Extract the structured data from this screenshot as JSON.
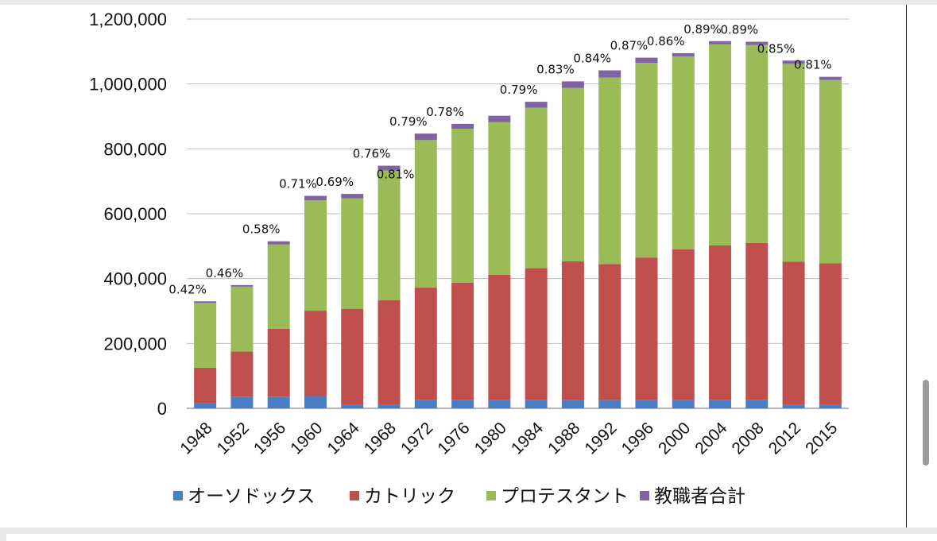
{
  "chart_data": {
    "type": "bar",
    "stacked": true,
    "categories": [
      "1948",
      "1952",
      "1956",
      "1960",
      "1964",
      "1968",
      "1972",
      "1976",
      "1980",
      "1984",
      "1988",
      "1992",
      "1996",
      "2000",
      "2004",
      "2008",
      "2012",
      "2015"
    ],
    "series": [
      {
        "name": "オーソドックス",
        "color": "#4a7ec4",
        "values": [
          15000,
          35000,
          35000,
          38000,
          10000,
          10000,
          25000,
          25000,
          25000,
          25000,
          25000,
          25000,
          25000,
          25000,
          25000,
          25000,
          12000,
          12000
        ]
      },
      {
        "name": "カトリック",
        "color": "#c0504d",
        "values": [
          110000,
          140000,
          210000,
          263000,
          297000,
          323000,
          347000,
          362000,
          387000,
          407000,
          428000,
          420000,
          440000,
          465000,
          477000,
          485000,
          440000,
          435000
        ]
      },
      {
        "name": "プロテスタント",
        "color": "#9bbb59",
        "values": [
          200000,
          200000,
          260000,
          340000,
          340000,
          400000,
          455000,
          475000,
          470000,
          495000,
          535000,
          575000,
          600000,
          595000,
          620000,
          610000,
          610000,
          565000
        ]
      },
      {
        "name": "教職者合計",
        "color": "#8064a2",
        "values": [
          5000,
          5000,
          10000,
          14000,
          14000,
          15000,
          20000,
          15000,
          20000,
          18000,
          20000,
          22000,
          16000,
          10000,
          10000,
          10000,
          10000,
          10000
        ]
      }
    ],
    "labels": [
      "0.42%",
      "0.46%",
      "0.58%",
      "0.71%",
      "0.69%",
      "0.76%\n0.81%",
      "0.79%",
      "0.78%",
      "0.79%",
      "0.83%",
      "0.84%",
      "0.87%",
      "0.86%",
      "0.89%",
      "0.89%",
      "0.85%",
      "0.81%"
    ],
    "point_labels": [
      {
        "text": "0.42%",
        "cat": "1948"
      },
      {
        "text": "0.46%",
        "cat": "1952"
      },
      {
        "text": "0.58%",
        "cat": "1956"
      },
      {
        "text": "0.71%",
        "cat": "1960"
      },
      {
        "text": "0.69%",
        "cat": "1964"
      },
      {
        "text": "0.76%",
        "cat": "1968"
      },
      {
        "text": "0.81%",
        "cat": "1968"
      },
      {
        "text": "0.79%",
        "cat": "1972"
      },
      {
        "text": "0.78%",
        "cat": "1976"
      },
      {
        "text": "0.79%",
        "cat": "1984"
      },
      {
        "text": "0.83%",
        "cat": "1988"
      },
      {
        "text": "0.84%",
        "cat": "1992"
      },
      {
        "text": "0.87%",
        "cat": "1996"
      },
      {
        "text": "0.86%",
        "cat": "2000"
      },
      {
        "text": "0.89%",
        "cat": "2004"
      },
      {
        "text": "0.89%",
        "cat": "2008"
      },
      {
        "text": "0.85%",
        "cat": "2012"
      },
      {
        "text": "0.81%",
        "cat": "2015"
      }
    ],
    "y_ticks": [
      "0",
      "200,000",
      "400,000",
      "600,000",
      "800,000",
      "1,000,000",
      "1,200,000"
    ],
    "ylim": [
      0,
      1200000
    ],
    "grid": true,
    "legend_position": "bottom",
    "title": "",
    "xlabel": "",
    "ylabel": ""
  }
}
